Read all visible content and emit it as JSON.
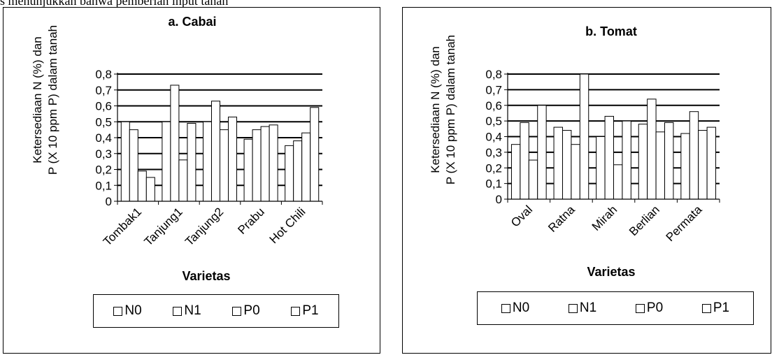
{
  "header_text": "s menunjukkan bahwa pemberian input tanah",
  "chart_data": [
    {
      "type": "bar",
      "title": "a. Cabai",
      "xlabel": "Varietas",
      "ylabel_line1": "Ketersediaan N (%) dan",
      "ylabel_line2": "P (X 10 ppm P) dalam tanah",
      "ylim": [
        0,
        0.8
      ],
      "yticks": [
        "0",
        "0,1",
        "0,2",
        "0,3",
        "0,4",
        "0,5",
        "0,6",
        "0,7",
        "0,8"
      ],
      "grid": true,
      "legend_position": "bottom",
      "categories": [
        "Tombak1",
        "Tanjung1",
        "Tanjung2",
        "Prabu",
        "Hot Chili"
      ],
      "series": [
        {
          "name": "N0",
          "values": [
            0.5,
            0.5,
            0.5,
            0.39,
            0.35
          ]
        },
        {
          "name": "N1",
          "values": [
            0.45,
            0.73,
            0.63,
            0.45,
            0.38
          ]
        },
        {
          "name": "P0",
          "values": [
            0.19,
            0.26,
            0.45,
            0.47,
            0.43
          ]
        },
        {
          "name": "P1",
          "values": [
            0.15,
            0.49,
            0.53,
            0.48,
            0.59
          ]
        }
      ]
    },
    {
      "type": "bar",
      "title": "b. Tomat",
      "xlabel": "Varietas",
      "ylabel_line1": "Ketersediaan N (%) dan",
      "ylabel_line2": "P (X 10 ppm P) dalam tanah",
      "ylim": [
        0,
        0.8
      ],
      "yticks": [
        "0",
        "0,1",
        "0,2",
        "0,3",
        "0,4",
        "0,5",
        "0,6",
        "0,7",
        "0,8"
      ],
      "grid": true,
      "legend_position": "bottom",
      "categories": [
        "Oval",
        "Ratna",
        "Mirah",
        "Berlian",
        "Permata"
      ],
      "series": [
        {
          "name": "N0",
          "values": [
            0.35,
            0.46,
            0.4,
            0.48,
            0.42
          ]
        },
        {
          "name": "N1",
          "values": [
            0.49,
            0.44,
            0.53,
            0.64,
            0.56
          ]
        },
        {
          "name": "P0",
          "values": [
            0.25,
            0.35,
            0.22,
            0.43,
            0.44
          ]
        },
        {
          "name": "P1",
          "values": [
            0.6,
            0.8,
            0.5,
            0.49,
            0.46
          ]
        }
      ]
    }
  ]
}
